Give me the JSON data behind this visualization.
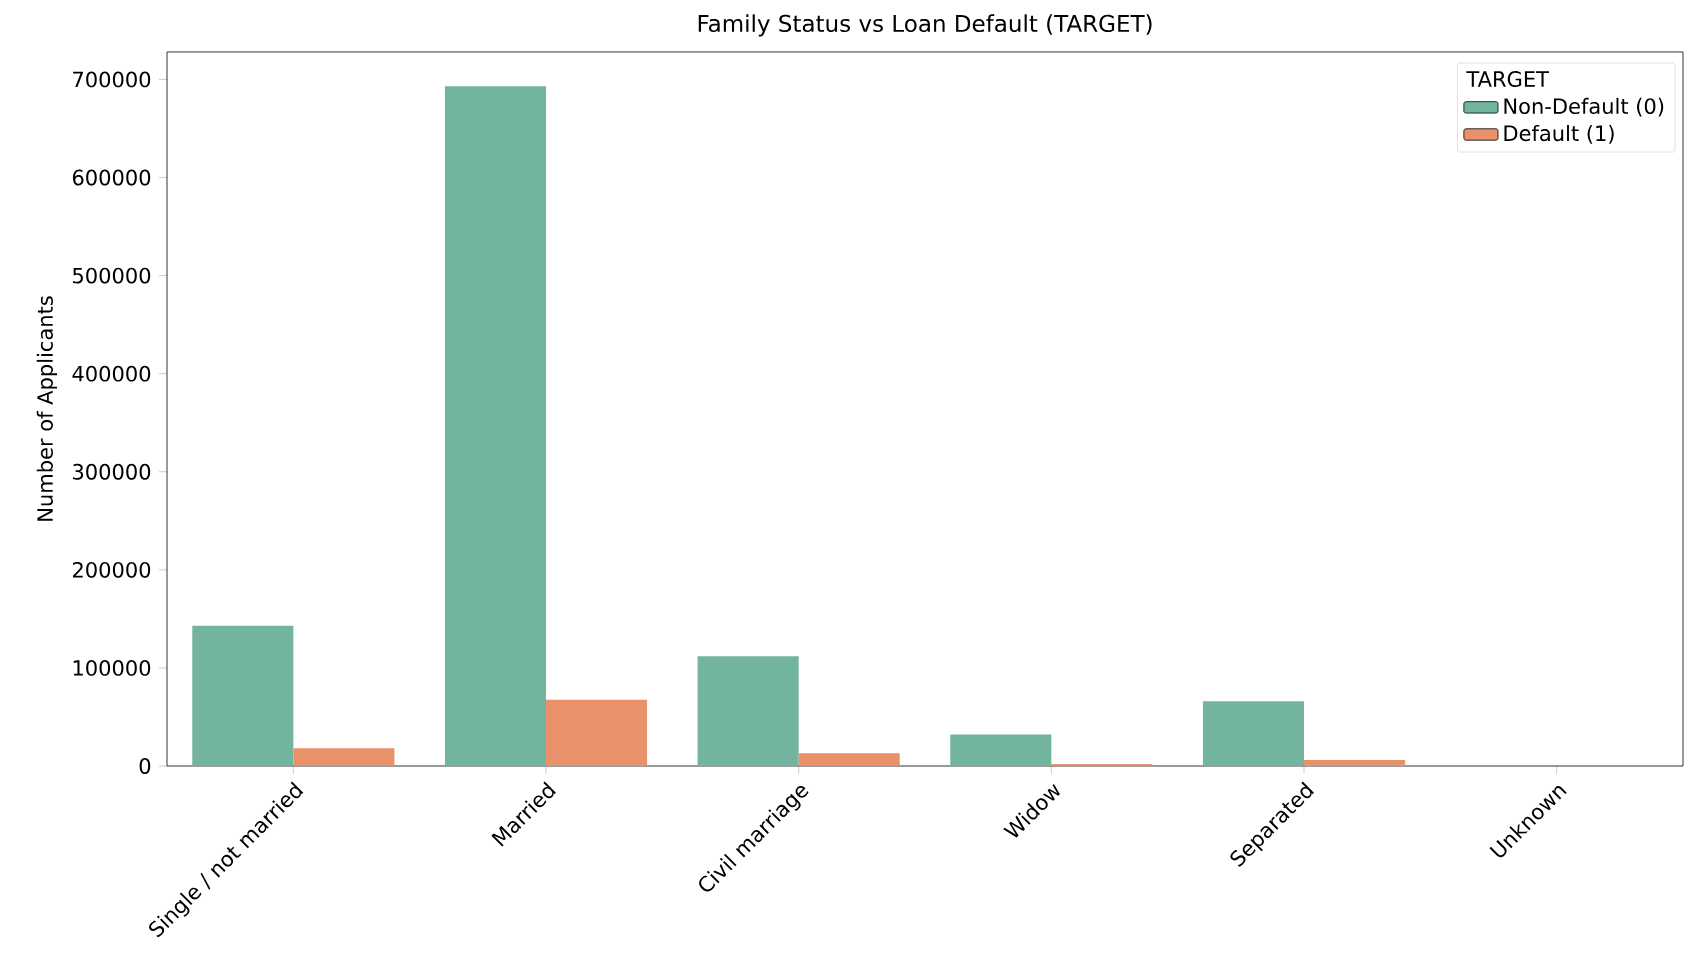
{
  "chart_data": {
    "type": "bar",
    "title": "Family Status vs Loan Default (TARGET)",
    "ylabel": "Number of Applicants",
    "legend_title": "TARGET",
    "legend": "top right",
    "grid": false,
    "categories": [
      "Single / not married",
      "Married",
      "Civil marriage",
      "Widow",
      "Separated",
      "Unknown"
    ],
    "series": [
      {
        "name": "Non-Default (0)",
        "color": "#72b49e",
        "values": [
          143000,
          693000,
          112000,
          32000,
          66000,
          0
        ]
      },
      {
        "name": "Default (1)",
        "color": "#e8916a",
        "values": [
          18000,
          67500,
          13000,
          2000,
          6000,
          0
        ]
      }
    ],
    "ylim": [
      0,
      728000
    ],
    "yticks": [
      0,
      100000,
      200000,
      300000,
      400000,
      500000,
      600000,
      700000
    ]
  }
}
